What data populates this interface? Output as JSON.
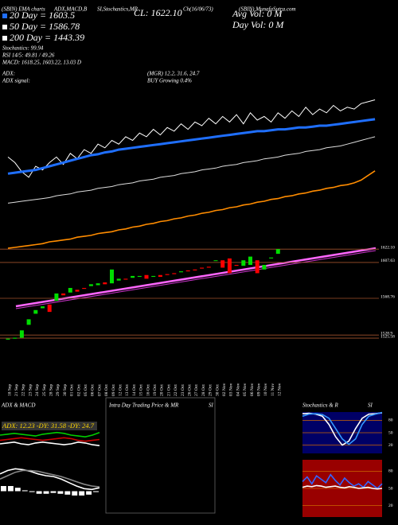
{
  "header": {
    "top_labels": [
      "(SBIN) EMA charts",
      "ADX,MACD,B",
      "SI,Stochastics,MR",
      "Ch(16/06/73)",
      "(SBIN) MunafaSutra.com"
    ],
    "close": "CL: 1622.10",
    "avg_vol": "Avg Vol: 0  M",
    "day_vol": "Day Vol: 0  M",
    "legend": [
      "20 Day = 1603.5",
      "50 Day = 1586.78",
      "200 Day = 1443.39",
      "Stochastics: 99.94",
      "RSI 14/5: 49.81 / 49.26",
      "MACD: 1618.25, 1603.22, 13.03 D"
    ],
    "adx_label": "ADX:",
    "adx_values": "(MGR) 12.2, 31.6, 24.7",
    "adx_signal_label": "ADX  signal:",
    "adx_signal": "BUY Growing 0.4%"
  },
  "chart_data": [
    {
      "type": "candlestick",
      "categories": [
        "18 Sep",
        "21 Sep",
        "22 Sep",
        "23 Sep",
        "24 Sep",
        "25 Sep",
        "28 Sep",
        "29 Sep",
        "30 Sep",
        "01 Oct",
        "02 Oct",
        "05 Oct",
        "06 Oct",
        "07 Oct",
        "08 Oct",
        "09 Oct",
        "12 Oct",
        "13 Oct",
        "14 Oct",
        "15 Oct",
        "16 Oct",
        "19 Oct",
        "20 Oct",
        "21 Oct",
        "22 Oct",
        "23 Oct",
        "26 Oct",
        "27 Oct",
        "28 Oct",
        "29 Oct",
        "30 Oct",
        "02 Nov",
        "03 Nov",
        "04 Nov",
        "05 Nov",
        "06 Nov",
        "09 Nov",
        "10 Nov",
        "11 Nov",
        "12 Nov",
        null,
        null,
        null,
        null,
        null,
        null,
        null,
        null,
        null,
        null,
        null,
        null,
        null,
        null
      ],
      "open": [
        1524,
        1525,
        1526,
        1540,
        1552,
        1558,
        1562,
        1566,
        1574,
        1575,
        1578,
        1580,
        1582,
        1583,
        1586,
        1585,
        1588,
        1590,
        1591,
        1592,
        1594,
        1592,
        1594,
        1595,
        1596,
        1597,
        1599,
        1600,
        1602,
        1603,
        1610,
        1610,
        1612,
        1605,
        1604,
        1605,
        1610,
        1600,
        1612,
        1617,
        null,
        null,
        null,
        null,
        null,
        null,
        null,
        null,
        null,
        null,
        null,
        null,
        null,
        null
      ],
      "close": [
        1525,
        1526,
        1534,
        1546,
        1556,
        1560,
        1554,
        1574,
        1572,
        1580,
        1576,
        1579,
        1584,
        1585,
        1584,
        1600,
        1590,
        1589,
        1593,
        1593,
        1590,
        1593,
        1592,
        1594,
        1595,
        1598,
        1598,
        1599,
        1601,
        1602,
        1610,
        1602,
        1596,
        1604,
        1610,
        1614,
        1596,
        1605,
        1613,
        1622.1,
        null,
        null,
        null,
        null,
        null,
        null,
        null,
        null,
        null,
        null,
        null,
        null,
        null,
        null
      ],
      "up_color": "#00dd00",
      "down_color": "#ff0000",
      "series": [
        {
          "color": "#ffffff",
          "values": [
            1722,
            1716,
            1706,
            1700,
            1712,
            1708,
            1716,
            1722,
            1714,
            1726,
            1720,
            1730,
            1726,
            1736,
            1732,
            1740,
            1736,
            1744,
            1740,
            1748,
            1744,
            1752,
            1746,
            1754,
            1750,
            1758,
            1752,
            1760,
            1756,
            1764,
            1758,
            1766,
            1760,
            1768,
            1758,
            1770,
            1762,
            1766,
            1760,
            1770,
            1764,
            1772,
            1766,
            1776,
            1768,
            1774,
            1770,
            1778,
            1772,
            1776,
            1774,
            1780,
            1782,
            1784
          ]
        },
        {
          "color": "#1f6fff",
          "values": [
            1704,
            1705,
            1706,
            1707,
            1708,
            1710,
            1712,
            1714,
            1716,
            1718,
            1720,
            1722,
            1724,
            1725,
            1727,
            1728,
            1730,
            1731,
            1732,
            1733,
            1734,
            1735,
            1736,
            1737,
            1738,
            1739,
            1740,
            1741,
            1742,
            1743,
            1744,
            1745,
            1746,
            1747,
            1748,
            1749,
            1750,
            1750,
            1751,
            1752,
            1752,
            1753,
            1754,
            1754,
            1755,
            1756,
            1756,
            1757,
            1758,
            1759,
            1760,
            1761,
            1762,
            1763
          ]
        },
        {
          "color": "#dddddd",
          "values": [
            1672,
            1673,
            1674,
            1675,
            1676,
            1677,
            1678,
            1680,
            1681,
            1682,
            1684,
            1685,
            1686,
            1688,
            1689,
            1690,
            1692,
            1693,
            1694,
            1696,
            1697,
            1698,
            1700,
            1701,
            1702,
            1704,
            1705,
            1706,
            1708,
            1709,
            1710,
            1712,
            1713,
            1714,
            1716,
            1717,
            1718,
            1720,
            1721,
            1722,
            1724,
            1725,
            1726,
            1728,
            1729,
            1730,
            1732,
            1733,
            1734,
            1736,
            1738,
            1740,
            1742,
            1744
          ]
        },
        {
          "color": "#ff8c00",
          "values": [
            1623,
            1624,
            1625,
            1626,
            1627,
            1628,
            1630,
            1631,
            1632,
            1633,
            1635,
            1636,
            1637,
            1639,
            1640,
            1641,
            1643,
            1644,
            1646,
            1647,
            1649,
            1650,
            1652,
            1653,
            1655,
            1656,
            1658,
            1659,
            1661,
            1662,
            1664,
            1665,
            1667,
            1668,
            1670,
            1671,
            1673,
            1674,
            1676,
            1677,
            1679,
            1680,
            1682,
            1683,
            1685,
            1686,
            1688,
            1689,
            1691,
            1692,
            1694,
            1697,
            1702,
            1707
          ]
        }
      ],
      "ylim": [
        1517,
        1888
      ],
      "yticks": [
        {
          "value": 1622.1,
          "label": "1622.10"
        },
        1607.63,
        1568.76,
        1528.9,
        1525.58
      ],
      "grid": true,
      "grid_color": "#a0522d"
    },
    {
      "type": "line",
      "title": "ADX & MACD",
      "annotation": "ADX: 12.23  -DY: 31.58  -DY: 24.7",
      "ylim": [
        0,
        50
      ],
      "series": [
        {
          "color": "#00cc00",
          "values": [
            30,
            31,
            32,
            31,
            30,
            29,
            31,
            32,
            33,
            32,
            30,
            29,
            28,
            30,
            33
          ]
        },
        {
          "color": "#cc0000",
          "values": [
            24,
            25,
            26,
            27,
            26,
            25,
            24,
            25,
            26,
            27,
            26,
            24,
            23,
            24,
            25
          ]
        },
        {
          "color": "#ffffff",
          "values": [
            20,
            21,
            22,
            20,
            19,
            21,
            22,
            21,
            20,
            19,
            20,
            22,
            21,
            19,
            18
          ]
        }
      ]
    },
    {
      "type": "line",
      "ylim": [
        -30,
        30
      ],
      "series": [
        {
          "color": "#ffffff",
          "values": [
            20,
            24,
            26,
            25,
            23,
            20,
            18,
            17,
            14,
            10,
            6,
            3,
            2,
            4
          ]
        },
        {
          "color": "#888888",
          "values": [
            14,
            18,
            22,
            24,
            24,
            23,
            21,
            19,
            17,
            14,
            11,
            8,
            6,
            5
          ]
        }
      ],
      "bars": {
        "color": "#ffffff",
        "values": [
          6,
          6,
          4,
          1,
          -1,
          -3,
          -3,
          -2,
          -3,
          -4,
          -5,
          -5,
          -4,
          -1
        ]
      }
    },
    {
      "type": "line",
      "title": "Intra Day Trading Price & MR",
      "subtitle": "SI"
    },
    {
      "type": "line",
      "title": "Stochastics & R",
      "subtitle": "SI",
      "ylim": [
        0,
        100
      ],
      "yticks": [
        80,
        50,
        20
      ],
      "background": "#000066",
      "series": [
        {
          "color": "#ffffff",
          "values": [
            96,
            97,
            95,
            90,
            70,
            40,
            20,
            30,
            60,
            85,
            95,
            96,
            98
          ]
        },
        {
          "color": "#3399ff",
          "values": [
            90,
            95,
            96,
            94,
            85,
            60,
            35,
            22,
            35,
            70,
            90,
            95,
            99
          ]
        }
      ]
    },
    {
      "type": "line",
      "ylim": [
        0,
        100
      ],
      "yticks": [
        80,
        50,
        20
      ],
      "background": "#990000",
      "series": [
        {
          "color": "#3366ff",
          "values": [
            62,
            70,
            58,
            72,
            66,
            60,
            74,
            64,
            56,
            68,
            60,
            54,
            58,
            52,
            62,
            56,
            50,
            58
          ]
        },
        {
          "color": "#ffffff",
          "values": [
            52,
            54,
            53,
            55,
            54,
            52,
            53,
            54,
            52,
            51,
            53,
            52,
            50,
            51,
            52,
            50,
            49,
            50
          ]
        }
      ]
    }
  ]
}
